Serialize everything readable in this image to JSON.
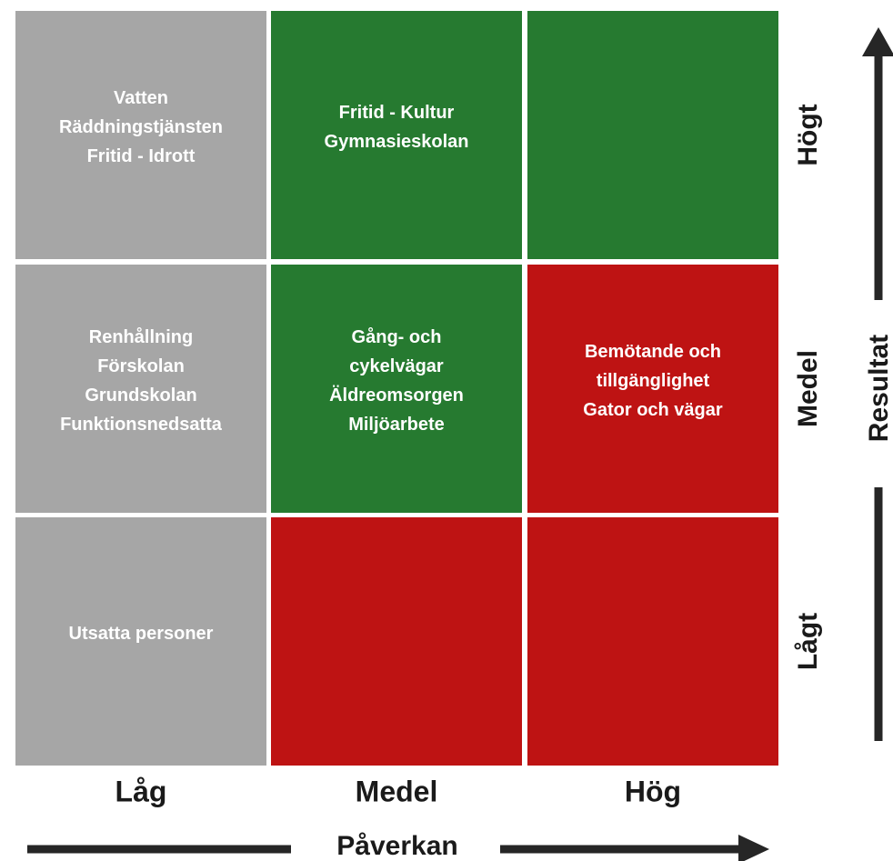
{
  "matrix": {
    "x_axis_title": "Påverkan",
    "y_axis_title": "Resultat",
    "columns": [
      "Låg",
      "Medel",
      "Hög"
    ],
    "rows": [
      "Högt",
      "Medel",
      "Lågt"
    ],
    "cells": [
      [
        {
          "color": "#a6a6a6",
          "lines": [
            "Vatten",
            "Räddningstjänsten",
            "Fritid - Idrott"
          ]
        },
        {
          "color": "#267a30",
          "lines": [
            "Fritid - Kultur",
            "Gymnasieskolan"
          ]
        },
        {
          "color": "#267a30",
          "lines": []
        }
      ],
      [
        {
          "color": "#a6a6a6",
          "lines": [
            "Renhållning",
            "Förskolan",
            "Grundskolan",
            "Funktionsnedsatta"
          ]
        },
        {
          "color": "#267a30",
          "lines": [
            "Gång- och",
            "cykelvägar",
            "Äldreomsorgen",
            "Miljöarbete"
          ]
        },
        {
          "color": "#be1313",
          "lines": [
            "Bemötande och",
            "tillgänglighet",
            "Gator och vägar"
          ]
        }
      ],
      [
        {
          "color": "#a6a6a6",
          "lines": [
            "Utsatta personer"
          ]
        },
        {
          "color": "#be1313",
          "lines": []
        },
        {
          "color": "#be1313",
          "lines": []
        }
      ]
    ]
  }
}
